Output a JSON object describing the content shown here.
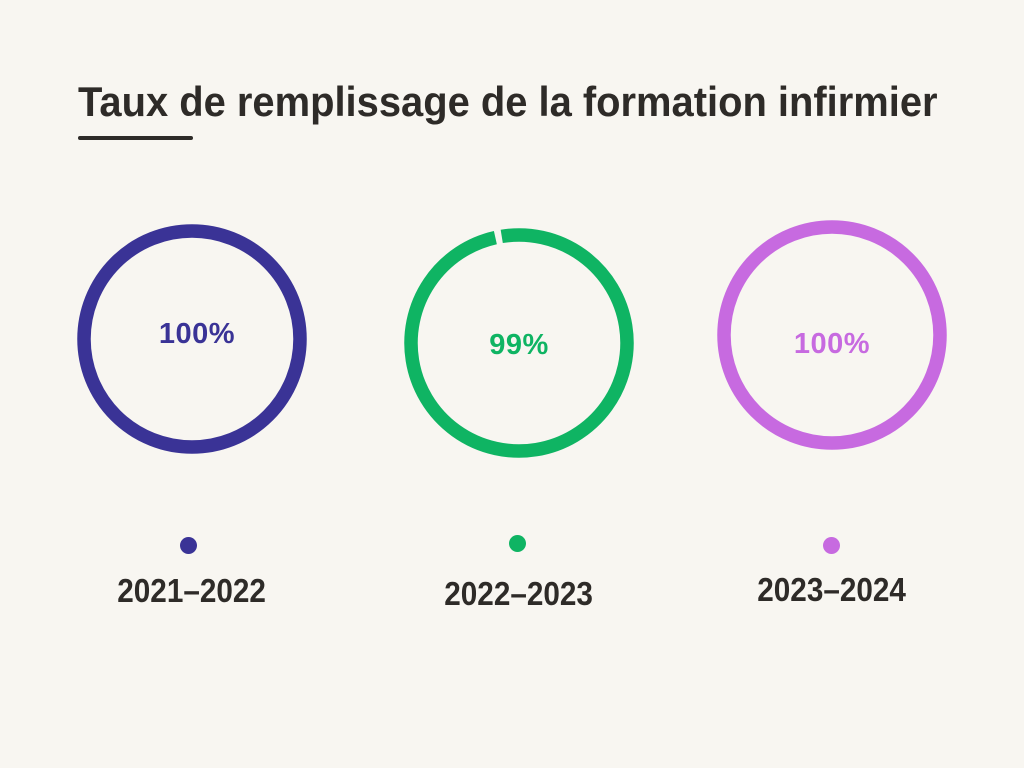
{
  "page": {
    "background_color": "#f8f6f1",
    "text_color": "#2e2b28"
  },
  "header": {
    "title": "Taux de remplissage de la formation infirmier"
  },
  "charts": [
    {
      "period": "2021–2022",
      "percent_label": "100%",
      "value": 100,
      "color": "#3a3396"
    },
    {
      "period": "2022–2023",
      "percent_label": "99%",
      "value": 99,
      "color": "#0fb463"
    },
    {
      "period": "2023–2024",
      "percent_label": "100%",
      "value": 100,
      "color": "#c76ae0"
    }
  ],
  "chart_data": {
    "type": "pie",
    "subtype": "donut-progress-rings",
    "title": "Taux de remplissage de la formation infirmier",
    "categories": [
      "2021–2022",
      "2022–2023",
      "2023–2024"
    ],
    "values": [
      100,
      99,
      100
    ],
    "unit": "%",
    "data_labels": [
      "100%",
      "99%",
      "100%"
    ],
    "colors": [
      "#3a3396",
      "#0fb463",
      "#c76ae0"
    ],
    "legend_position": "dot-and-label-below-each-ring",
    "grid": false
  }
}
